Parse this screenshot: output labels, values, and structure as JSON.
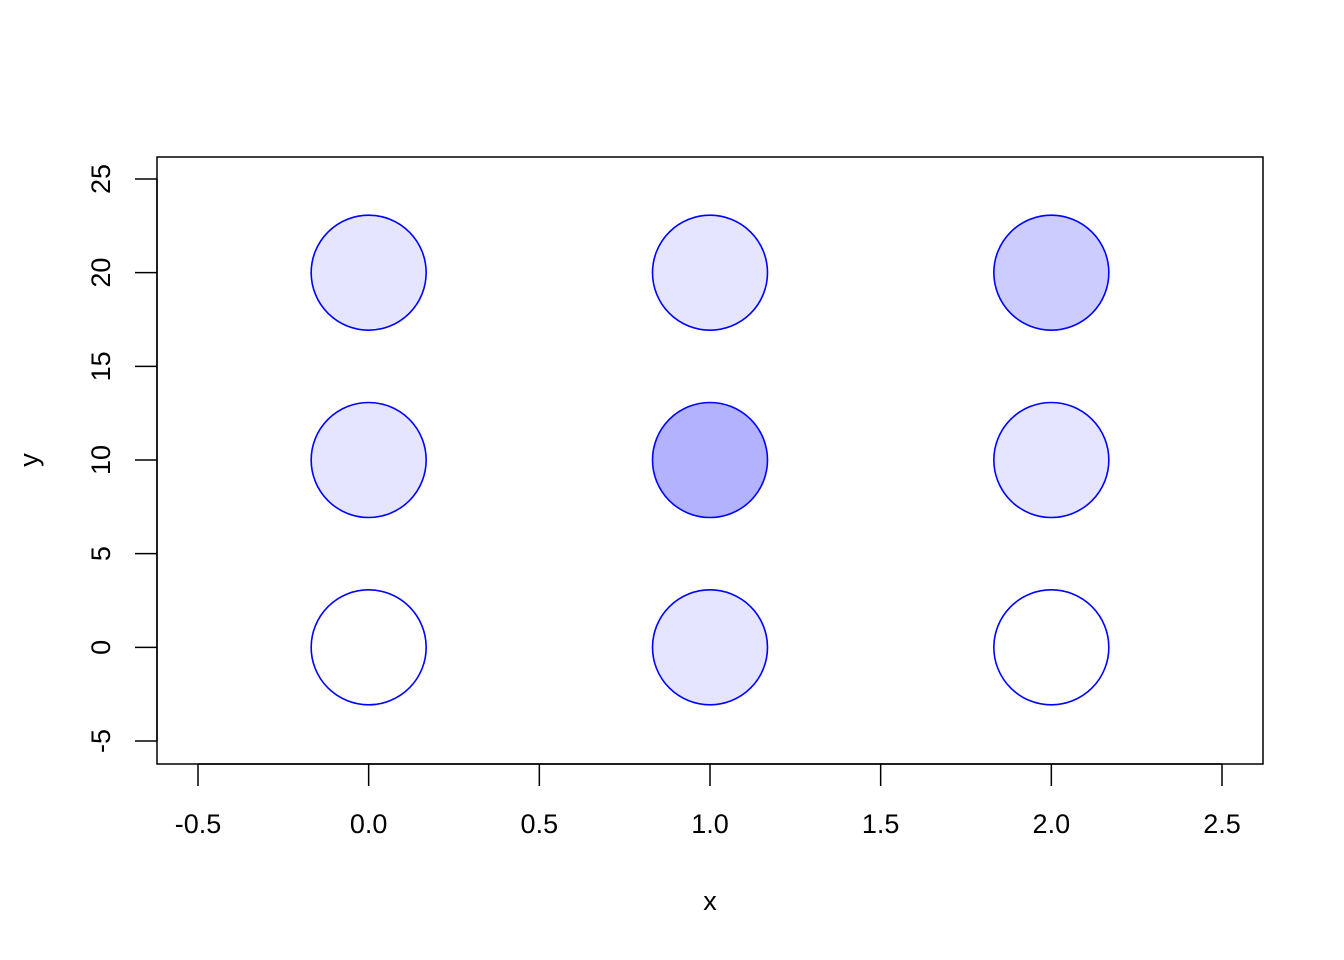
{
  "chart_data": {
    "type": "scatter",
    "title": "",
    "xlabel": "x",
    "ylabel": "y",
    "xlim": [
      -0.5,
      2.5
    ],
    "ylim": [
      -5,
      25
    ],
    "x_ticks": [
      {
        "value": -0.5,
        "label": "-0.5"
      },
      {
        "value": 0,
        "label": "0.0"
      },
      {
        "value": 0.5,
        "label": "0.5"
      },
      {
        "value": 1,
        "label": "1.0"
      },
      {
        "value": 1.5,
        "label": "1.5"
      },
      {
        "value": 2,
        "label": "2.0"
      },
      {
        "value": 2.5,
        "label": "2.5"
      }
    ],
    "y_ticks": [
      {
        "value": -5,
        "label": "-5"
      },
      {
        "value": 0,
        "label": "0"
      },
      {
        "value": 5,
        "label": "5"
      },
      {
        "value": 10,
        "label": "10"
      },
      {
        "value": 15,
        "label": "15"
      },
      {
        "value": 20,
        "label": "20"
      },
      {
        "value": 25,
        "label": "25"
      }
    ],
    "grid": false,
    "legend": "none",
    "marker_outline_color": "#0000FF",
    "points": [
      {
        "x": 0,
        "y": 0,
        "fill": "#FFFFFF"
      },
      {
        "x": 1,
        "y": 0,
        "fill": "#E5E5FF"
      },
      {
        "x": 2,
        "y": 0,
        "fill": "#FFFFFF"
      },
      {
        "x": 0,
        "y": 10,
        "fill": "#E5E5FF"
      },
      {
        "x": 1,
        "y": 10,
        "fill": "#B2B2FF"
      },
      {
        "x": 2,
        "y": 10,
        "fill": "#E5E5FF"
      },
      {
        "x": 0,
        "y": 20,
        "fill": "#E5E5FF"
      },
      {
        "x": 1,
        "y": 20,
        "fill": "#E5E5FF"
      },
      {
        "x": 2,
        "y": 20,
        "fill": "#CCCCFF"
      }
    ]
  }
}
